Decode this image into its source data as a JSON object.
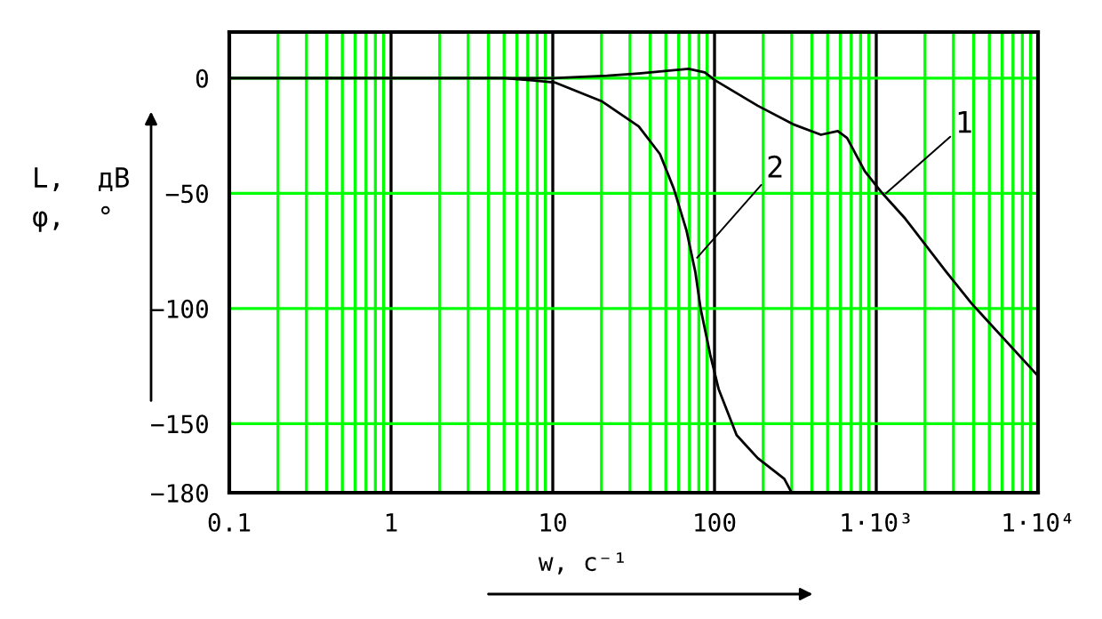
{
  "chart_data": {
    "type": "line",
    "xlabel": "w, c⁻¹",
    "ylabel": "L,  дВ\nφ,  °",
    "log": "x",
    "grid": true,
    "legend": false,
    "marker": "none",
    "line_style": "solid",
    "xlim": [
      0.1,
      10000
    ],
    "ylim": [
      -180,
      20
    ],
    "xticks": [
      0.1,
      1,
      10,
      100,
      {
        "value": 1000,
        "label": "1·10³"
      },
      {
        "value": 10000,
        "label": "1·10⁴"
      }
    ],
    "yticks": [
      0,
      -50,
      -100,
      -150,
      -180
    ],
    "series": [
      {
        "color": "#000000",
        "x": [
          0.1,
          10,
          21.6,
          34,
          69,
          87,
          101,
          185,
          305,
          455,
          578,
          660,
          850,
          1090,
          1510,
          2700,
          3900,
          4400,
          9900,
          10000
        ],
        "values": [
          0,
          0,
          1,
          2,
          4,
          2.5,
          -1,
          -12,
          -20,
          -24.6,
          -23,
          -26,
          -40.5,
          -50,
          -61,
          -84,
          -98,
          -102,
          -129,
          -129
        ]
      },
      {
        "color": "#000000",
        "x": [
          0.1,
          5,
          7.5,
          10.4,
          20,
          34,
          46,
          56,
          67,
          76,
          82,
          94,
          106,
          137,
          185,
          270,
          300
        ],
        "values": [
          0,
          0,
          -1,
          -2,
          -10,
          -21,
          -33,
          -48,
          -66,
          -84,
          -100,
          -120,
          -135,
          -155,
          -165,
          -174,
          -180
        ]
      }
    ],
    "annotations": [
      {
        "text": "1",
        "x": 1150,
        "y": -50
      },
      {
        "text": "2",
        "x": 78,
        "y": -78
      }
    ]
  }
}
